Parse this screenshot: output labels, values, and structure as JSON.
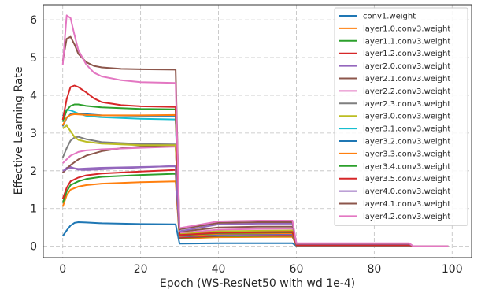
{
  "chart_data": {
    "type": "line",
    "title": "",
    "xlabel": "Epoch (WS-ResNet50 with wd 1e-4)",
    "ylabel": "Effective Learning Rate",
    "xlim": [
      -5,
      105
    ],
    "ylim": [
      -0.3,
      6.4
    ],
    "xticks": [
      0,
      20,
      40,
      60,
      80,
      100
    ],
    "yticks": [
      0,
      1,
      2,
      3,
      4,
      5,
      6
    ],
    "grid": true,
    "legend_position": "top-right",
    "series": [
      {
        "name": "conv1.weight",
        "color": "#1f77b4",
        "points": [
          [
            0,
            0.27
          ],
          [
            1,
            0.42
          ],
          [
            2,
            0.55
          ],
          [
            3,
            0.62
          ],
          [
            4,
            0.64
          ],
          [
            6,
            0.63
          ],
          [
            10,
            0.61
          ],
          [
            20,
            0.59
          ],
          [
            29,
            0.58
          ],
          [
            30,
            0.07
          ],
          [
            40,
            0.08
          ],
          [
            59,
            0.08
          ],
          [
            60,
            0.01
          ],
          [
            89,
            0.01
          ],
          [
            90,
            0.0
          ],
          [
            99,
            0.0
          ]
        ]
      },
      {
        "name": "layer1.0.conv3.weight",
        "color": "#ff7f0e",
        "points": [
          [
            0,
            1.05
          ],
          [
            1,
            1.35
          ],
          [
            2,
            1.5
          ],
          [
            4,
            1.58
          ],
          [
            6,
            1.62
          ],
          [
            10,
            1.66
          ],
          [
            20,
            1.7
          ],
          [
            29,
            1.72
          ],
          [
            30,
            0.2
          ],
          [
            40,
            0.24
          ],
          [
            59,
            0.25
          ],
          [
            60,
            0.02
          ],
          [
            89,
            0.02
          ],
          [
            90,
            0.0
          ],
          [
            99,
            0.0
          ]
        ]
      },
      {
        "name": "layer1.1.conv3.weight",
        "color": "#2ca02c",
        "points": [
          [
            0,
            1.15
          ],
          [
            1,
            1.45
          ],
          [
            2,
            1.62
          ],
          [
            4,
            1.72
          ],
          [
            6,
            1.78
          ],
          [
            10,
            1.84
          ],
          [
            20,
            1.89
          ],
          [
            29,
            1.92
          ],
          [
            30,
            0.22
          ],
          [
            40,
            0.27
          ],
          [
            59,
            0.28
          ],
          [
            60,
            0.02
          ],
          [
            89,
            0.02
          ],
          [
            90,
            0.0
          ],
          [
            99,
            0.0
          ]
        ]
      },
      {
        "name": "layer1.2.conv3.weight",
        "color": "#d62728",
        "points": [
          [
            0,
            1.25
          ],
          [
            1,
            1.55
          ],
          [
            2,
            1.72
          ],
          [
            4,
            1.82
          ],
          [
            6,
            1.88
          ],
          [
            10,
            1.93
          ],
          [
            20,
            1.98
          ],
          [
            29,
            2.02
          ],
          [
            30,
            0.23
          ],
          [
            40,
            0.28
          ],
          [
            59,
            0.3
          ],
          [
            60,
            0.02
          ],
          [
            89,
            0.02
          ],
          [
            90,
            0.0
          ],
          [
            99,
            0.0
          ]
        ]
      },
      {
        "name": "layer2.0.conv3.weight",
        "color": "#9467bd",
        "points": [
          [
            0,
            1.95
          ],
          [
            1,
            2.08
          ],
          [
            2,
            2.1
          ],
          [
            4,
            2.03
          ],
          [
            6,
            2.02
          ],
          [
            10,
            2.04
          ],
          [
            20,
            2.09
          ],
          [
            29,
            2.13
          ],
          [
            30,
            0.26
          ],
          [
            40,
            0.3
          ],
          [
            59,
            0.32
          ],
          [
            60,
            0.02
          ],
          [
            89,
            0.02
          ],
          [
            90,
            0.0
          ],
          [
            99,
            0.0
          ]
        ]
      },
      {
        "name": "layer2.1.conv3.weight",
        "color": "#8c564b",
        "points": [
          [
            0,
            1.95
          ],
          [
            2,
            2.15
          ],
          [
            4,
            2.3
          ],
          [
            6,
            2.4
          ],
          [
            10,
            2.52
          ],
          [
            15,
            2.6
          ],
          [
            20,
            2.64
          ],
          [
            29,
            2.66
          ],
          [
            30,
            0.38
          ],
          [
            40,
            0.5
          ],
          [
            50,
            0.52
          ],
          [
            59,
            0.52
          ],
          [
            60,
            0.04
          ],
          [
            89,
            0.05
          ],
          [
            90,
            0.0
          ],
          [
            99,
            0.0
          ]
        ]
      },
      {
        "name": "layer2.2.conv3.weight",
        "color": "#e377c2",
        "points": [
          [
            0,
            2.2
          ],
          [
            2,
            2.4
          ],
          [
            4,
            2.5
          ],
          [
            6,
            2.54
          ],
          [
            10,
            2.57
          ],
          [
            20,
            2.61
          ],
          [
            29,
            2.64
          ],
          [
            30,
            0.35
          ],
          [
            40,
            0.44
          ],
          [
            50,
            0.46
          ],
          [
            59,
            0.47
          ],
          [
            60,
            0.03
          ],
          [
            89,
            0.04
          ],
          [
            90,
            0.0
          ],
          [
            99,
            0.0
          ]
        ]
      },
      {
        "name": "layer2.3.conv3.weight",
        "color": "#7f7f7f",
        "points": [
          [
            0,
            2.35
          ],
          [
            1,
            2.6
          ],
          [
            2,
            2.8
          ],
          [
            3,
            2.88
          ],
          [
            4,
            2.9
          ],
          [
            6,
            2.84
          ],
          [
            10,
            2.76
          ],
          [
            20,
            2.71
          ],
          [
            29,
            2.7
          ],
          [
            30,
            0.3
          ],
          [
            40,
            0.37
          ],
          [
            59,
            0.4
          ],
          [
            60,
            0.03
          ],
          [
            89,
            0.03
          ],
          [
            90,
            0.0
          ],
          [
            99,
            0.0
          ]
        ]
      },
      {
        "name": "layer3.0.conv3.weight",
        "color": "#bcbd22",
        "points": [
          [
            0,
            3.12
          ],
          [
            1,
            3.2
          ],
          [
            2,
            3.05
          ],
          [
            3,
            2.9
          ],
          [
            4,
            2.82
          ],
          [
            6,
            2.77
          ],
          [
            10,
            2.72
          ],
          [
            20,
            2.68
          ],
          [
            29,
            2.68
          ],
          [
            30,
            0.32
          ],
          [
            40,
            0.4
          ],
          [
            59,
            0.42
          ],
          [
            60,
            0.03
          ],
          [
            89,
            0.03
          ],
          [
            90,
            0.0
          ],
          [
            99,
            0.0
          ]
        ]
      },
      {
        "name": "layer3.1.conv3.weight",
        "color": "#17becf",
        "points": [
          [
            0,
            3.45
          ],
          [
            1,
            3.62
          ],
          [
            2,
            3.6
          ],
          [
            4,
            3.52
          ],
          [
            6,
            3.46
          ],
          [
            10,
            3.42
          ],
          [
            20,
            3.38
          ],
          [
            29,
            3.36
          ],
          [
            30,
            0.28
          ],
          [
            40,
            0.34
          ],
          [
            59,
            0.36
          ],
          [
            60,
            0.03
          ],
          [
            89,
            0.03
          ],
          [
            90,
            0.0
          ],
          [
            99,
            0.0
          ]
        ]
      },
      {
        "name": "layer3.2.conv3.weight",
        "color": "#1f77b4",
        "points": [
          [
            0,
            3.18
          ],
          [
            1,
            3.4
          ],
          [
            2,
            3.5
          ],
          [
            4,
            3.52
          ],
          [
            6,
            3.5
          ],
          [
            10,
            3.47
          ],
          [
            20,
            3.46
          ],
          [
            29,
            3.46
          ],
          [
            30,
            0.26
          ],
          [
            40,
            0.32
          ],
          [
            59,
            0.34
          ],
          [
            60,
            0.03
          ],
          [
            89,
            0.03
          ],
          [
            90,
            0.0
          ],
          [
            99,
            0.0
          ]
        ]
      },
      {
        "name": "layer3.3.conv3.weight",
        "color": "#ff7f0e",
        "points": [
          [
            0,
            3.2
          ],
          [
            1,
            3.42
          ],
          [
            2,
            3.48
          ],
          [
            3,
            3.5
          ],
          [
            6,
            3.48
          ],
          [
            10,
            3.47
          ],
          [
            20,
            3.47
          ],
          [
            29,
            3.48
          ],
          [
            30,
            0.27
          ],
          [
            40,
            0.33
          ],
          [
            59,
            0.35
          ],
          [
            60,
            0.03
          ],
          [
            89,
            0.03
          ],
          [
            90,
            0.0
          ],
          [
            99,
            0.0
          ]
        ]
      },
      {
        "name": "layer3.4.conv3.weight",
        "color": "#2ca02c",
        "points": [
          [
            0,
            3.3
          ],
          [
            1,
            3.6
          ],
          [
            2,
            3.72
          ],
          [
            3,
            3.76
          ],
          [
            4,
            3.76
          ],
          [
            6,
            3.72
          ],
          [
            10,
            3.68
          ],
          [
            20,
            3.64
          ],
          [
            29,
            3.63
          ],
          [
            30,
            0.29
          ],
          [
            40,
            0.35
          ],
          [
            59,
            0.37
          ],
          [
            60,
            0.03
          ],
          [
            89,
            0.03
          ],
          [
            90,
            0.0
          ],
          [
            99,
            0.0
          ]
        ]
      },
      {
        "name": "layer3.5.conv3.weight",
        "color": "#d62728",
        "points": [
          [
            0,
            3.35
          ],
          [
            1,
            3.9
          ],
          [
            2,
            4.22
          ],
          [
            3,
            4.26
          ],
          [
            4,
            4.22
          ],
          [
            6,
            4.08
          ],
          [
            8,
            3.92
          ],
          [
            10,
            3.82
          ],
          [
            15,
            3.74
          ],
          [
            20,
            3.71
          ],
          [
            29,
            3.69
          ],
          [
            30,
            0.3
          ],
          [
            40,
            0.36
          ],
          [
            59,
            0.38
          ],
          [
            60,
            0.03
          ],
          [
            89,
            0.03
          ],
          [
            90,
            0.0
          ],
          [
            99,
            0.0
          ]
        ]
      },
      {
        "name": "layer4.0.conv3.weight",
        "color": "#9467bd",
        "points": [
          [
            0,
            2.0
          ],
          [
            2,
            2.08
          ],
          [
            4,
            2.05
          ],
          [
            6,
            2.06
          ],
          [
            10,
            2.08
          ],
          [
            20,
            2.1
          ],
          [
            29,
            2.12
          ],
          [
            30,
            0.4
          ],
          [
            40,
            0.58
          ],
          [
            50,
            0.6
          ],
          [
            59,
            0.6
          ],
          [
            60,
            0.06
          ],
          [
            89,
            0.06
          ],
          [
            90,
            0.0
          ],
          [
            99,
            0.0
          ]
        ]
      },
      {
        "name": "layer4.1.conv3.weight",
        "color": "#8c564b",
        "points": [
          [
            0,
            4.9
          ],
          [
            1,
            5.5
          ],
          [
            2,
            5.55
          ],
          [
            3,
            5.35
          ],
          [
            4,
            5.1
          ],
          [
            6,
            4.88
          ],
          [
            8,
            4.78
          ],
          [
            10,
            4.74
          ],
          [
            15,
            4.7
          ],
          [
            20,
            4.69
          ],
          [
            29,
            4.68
          ],
          [
            30,
            0.45
          ],
          [
            40,
            0.62
          ],
          [
            50,
            0.64
          ],
          [
            59,
            0.64
          ],
          [
            60,
            0.07
          ],
          [
            89,
            0.07
          ],
          [
            90,
            0.0
          ],
          [
            99,
            0.0
          ]
        ]
      },
      {
        "name": "layer4.2.conv3.weight",
        "color": "#e377c2",
        "points": [
          [
            0,
            4.8
          ],
          [
            1,
            6.12
          ],
          [
            2,
            6.05
          ],
          [
            3,
            5.6
          ],
          [
            4,
            5.2
          ],
          [
            6,
            4.82
          ],
          [
            8,
            4.6
          ],
          [
            10,
            4.5
          ],
          [
            15,
            4.4
          ],
          [
            20,
            4.35
          ],
          [
            29,
            4.33
          ],
          [
            30,
            0.48
          ],
          [
            40,
            0.66
          ],
          [
            50,
            0.68
          ],
          [
            59,
            0.68
          ],
          [
            60,
            0.08
          ],
          [
            89,
            0.08
          ],
          [
            90,
            0.0
          ],
          [
            99,
            0.0
          ]
        ]
      }
    ]
  }
}
